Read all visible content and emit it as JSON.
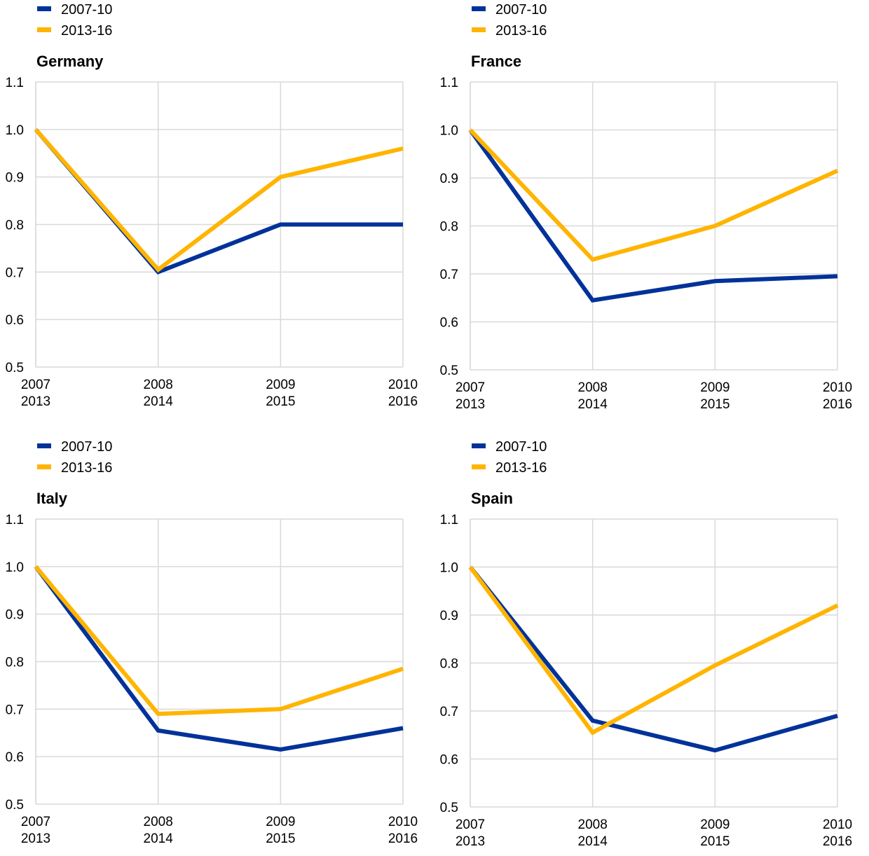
{
  "colors": {
    "series_1": "#003299",
    "series_2": "#FFB400",
    "grid": "#d9d9d9"
  },
  "chart_data": [
    {
      "type": "line",
      "title": "Germany",
      "xlabel": "",
      "ylabel": "",
      "ylim": [
        0.5,
        1.1
      ],
      "yticks": [
        "0.5",
        "0.6",
        "0.7",
        "0.8",
        "0.9",
        "1.0",
        "1.1"
      ],
      "categories": [
        [
          "2007",
          "2013"
        ],
        [
          "2008",
          "2014"
        ],
        [
          "2009",
          "2015"
        ],
        [
          "2010",
          "2016"
        ]
      ],
      "legend": {
        "placement": "top-left"
      },
      "series": [
        {
          "name": "2007-10",
          "values": [
            1.0,
            0.7,
            0.8,
            0.8
          ]
        },
        {
          "name": "2013-16",
          "values": [
            1.0,
            0.705,
            0.9,
            0.96
          ]
        }
      ]
    },
    {
      "type": "line",
      "title": "France",
      "xlabel": "",
      "ylabel": "",
      "ylim": [
        0.5,
        1.1
      ],
      "yticks": [
        "0.5",
        "0.6",
        "0.7",
        "0.8",
        "0.9",
        "1.0",
        "1.1"
      ],
      "categories": [
        [
          "2007",
          "2013"
        ],
        [
          "2008",
          "2014"
        ],
        [
          "2009",
          "2015"
        ],
        [
          "2010",
          "2016"
        ]
      ],
      "legend": {
        "placement": "top-left"
      },
      "series": [
        {
          "name": "2007-10",
          "values": [
            1.0,
            0.645,
            0.685,
            0.695
          ]
        },
        {
          "name": "2013-16",
          "values": [
            1.0,
            0.73,
            0.8,
            0.915
          ]
        }
      ]
    },
    {
      "type": "line",
      "title": "Italy",
      "xlabel": "",
      "ylabel": "",
      "ylim": [
        0.5,
        1.1
      ],
      "yticks": [
        "0.5",
        "0.6",
        "0.7",
        "0.8",
        "0.9",
        "1.0",
        "1.1"
      ],
      "categories": [
        [
          "2007",
          "2013"
        ],
        [
          "2008",
          "2014"
        ],
        [
          "2009",
          "2015"
        ],
        [
          "2010",
          "2016"
        ]
      ],
      "legend": {
        "placement": "top-left"
      },
      "series": [
        {
          "name": "2007-10",
          "values": [
            1.0,
            0.655,
            0.615,
            0.66
          ]
        },
        {
          "name": "2013-16",
          "values": [
            1.0,
            0.69,
            0.7,
            0.785
          ]
        }
      ]
    },
    {
      "type": "line",
      "title": "Spain",
      "xlabel": "",
      "ylabel": "",
      "ylim": [
        0.5,
        1.1
      ],
      "yticks": [
        "0.5",
        "0.6",
        "0.7",
        "0.8",
        "0.9",
        "1.0",
        "1.1"
      ],
      "categories": [
        [
          "2007",
          "2013"
        ],
        [
          "2008",
          "2014"
        ],
        [
          "2009",
          "2015"
        ],
        [
          "2010",
          "2016"
        ]
      ],
      "legend": {
        "placement": "top-left"
      },
      "series": [
        {
          "name": "2007-10",
          "values": [
            1.0,
            0.68,
            0.618,
            0.69
          ]
        },
        {
          "name": "2013-16",
          "values": [
            1.0,
            0.655,
            0.795,
            0.92
          ]
        }
      ]
    }
  ]
}
